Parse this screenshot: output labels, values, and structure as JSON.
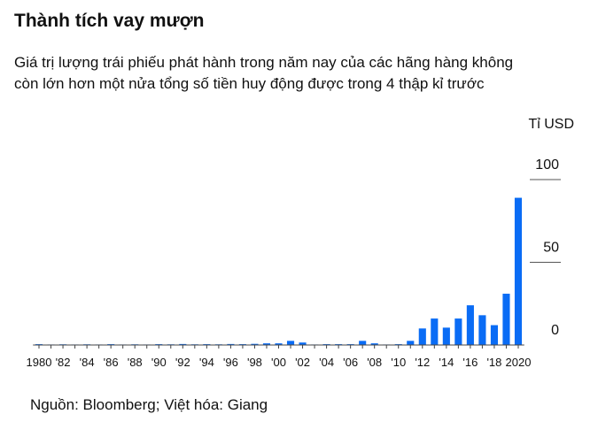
{
  "chart_data": {
    "type": "bar",
    "title": "Thành tích vay mượn",
    "subtitle": [
      "Giá trị lượng trái phiếu phát hành trong năm nay của các hãng hàng không",
      "còn lớn hơn một nửa tổng số tiền huy động được trong 4 thập kỉ trước"
    ],
    "y_unit": "Tỉ USD",
    "source": "Nguồn: Bloomberg; Việt hóa: Giang",
    "categories": [
      "1980",
      null,
      "'82",
      null,
      "'84",
      null,
      "'86",
      null,
      "'88",
      null,
      "'90",
      null,
      "'92",
      null,
      "'94",
      null,
      "'96",
      null,
      "'98",
      null,
      "'00",
      null,
      "'02",
      null,
      "'04",
      null,
      "'06",
      null,
      "'08",
      null,
      "'10",
      null,
      "'12",
      null,
      "'14",
      null,
      "'16",
      null,
      "'18",
      null,
      "2020"
    ],
    "values": [
      0.5,
      0.3,
      0.4,
      0.3,
      0.4,
      0.3,
      0.5,
      0.3,
      0.4,
      0.3,
      0.5,
      0.4,
      0.6,
      0.4,
      0.5,
      0.4,
      0.6,
      0.5,
      0.7,
      1,
      1,
      2.5,
      1.5,
      0.3,
      0.5,
      0.5,
      0.5,
      2.5,
      1,
      0.3,
      0.5,
      2.5,
      10,
      16,
      10.5,
      16,
      24,
      18,
      12,
      31,
      89
    ],
    "color": "#0a6cf5",
    "ylim": [
      0,
      100
    ],
    "yticks": [
      0,
      50,
      100
    ]
  }
}
